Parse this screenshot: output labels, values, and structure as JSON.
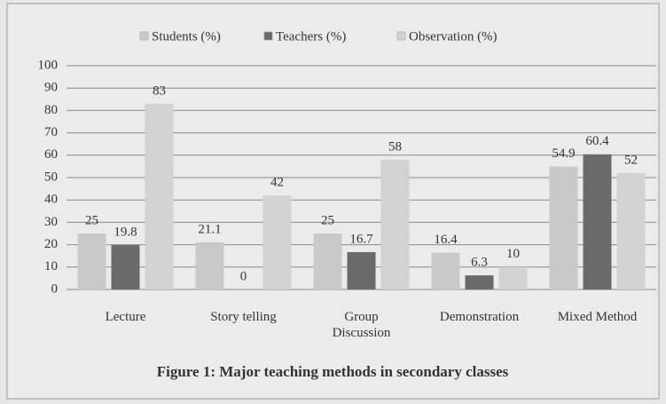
{
  "chart_data": {
    "type": "bar",
    "title": "Figure 1: Major teaching methods in secondary classes",
    "categories": [
      "Lecture",
      "Story telling",
      "Group Discussion",
      "Demonstration",
      "Mixed Method"
    ],
    "series": [
      {
        "name": "Students (%)",
        "color": "#c9c9c9",
        "values": [
          25,
          21.1,
          25,
          16.4,
          54.9
        ]
      },
      {
        "name": "Teachers (%)",
        "color": "#6a6a6a",
        "values": [
          19.8,
          0,
          16.7,
          6.3,
          60.4
        ]
      },
      {
        "name": "Observation (%)",
        "color": "#d2d2d2",
        "values": [
          83,
          42,
          58,
          10,
          52
        ]
      }
    ],
    "ylim": [
      0,
      100
    ],
    "yticks": [
      0,
      10,
      20,
      30,
      40,
      50,
      60,
      70,
      80,
      90,
      100
    ],
    "grid": true,
    "legend": "top"
  }
}
